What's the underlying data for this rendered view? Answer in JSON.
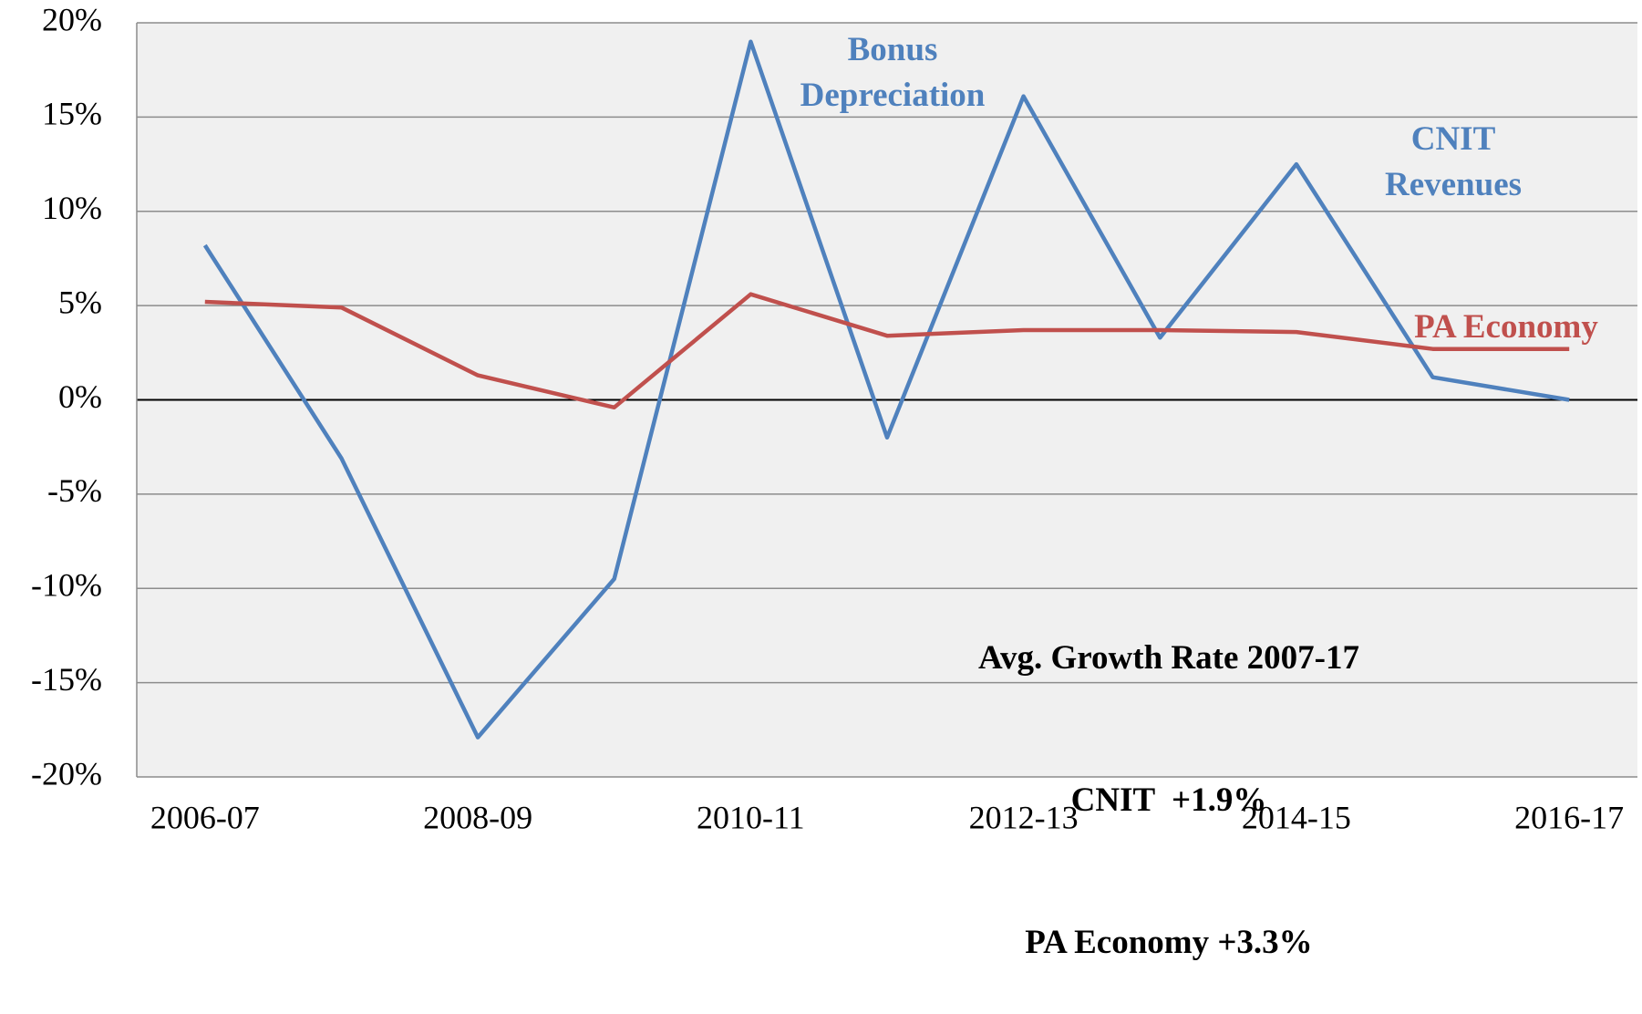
{
  "chart_data": {
    "type": "line",
    "categories": [
      "2006-07",
      null,
      "2008-09",
      null,
      "2010-11",
      null,
      "2012-13",
      null,
      "2014-15",
      null,
      "2016-17"
    ],
    "series": [
      {
        "name": "CNIT Revenues",
        "color": "#4f81bd",
        "values": [
          8.2,
          -3.1,
          -17.9,
          -9.5,
          19.0,
          -2.0,
          16.1,
          3.3,
          12.5,
          1.2,
          0.0
        ]
      },
      {
        "name": "PA Economy",
        "color": "#c0504d",
        "values": [
          5.2,
          4.9,
          1.3,
          -0.4,
          5.6,
          3.4,
          3.7,
          3.7,
          3.6,
          2.7,
          2.7
        ]
      }
    ],
    "ylim": [
      -20,
      20
    ],
    "yticks": [
      {
        "value": -20,
        "label": "-20%"
      },
      {
        "value": -15,
        "label": "-15%"
      },
      {
        "value": -10,
        "label": "-10%"
      },
      {
        "value": -5,
        "label": "-5%"
      },
      {
        "value": 0,
        "label": "0%"
      },
      {
        "value": 5,
        "label": "5%"
      },
      {
        "value": 10,
        "label": "10%"
      },
      {
        "value": 15,
        "label": "15%"
      },
      {
        "value": 20,
        "label": "20%"
      }
    ],
    "grid": true,
    "annotations": [
      "Bonus Depreciation"
    ],
    "note": [
      "Avg. Growth Rate 2007-17",
      "CNIT  +1.9%",
      "PA Economy +3.3%"
    ]
  }
}
